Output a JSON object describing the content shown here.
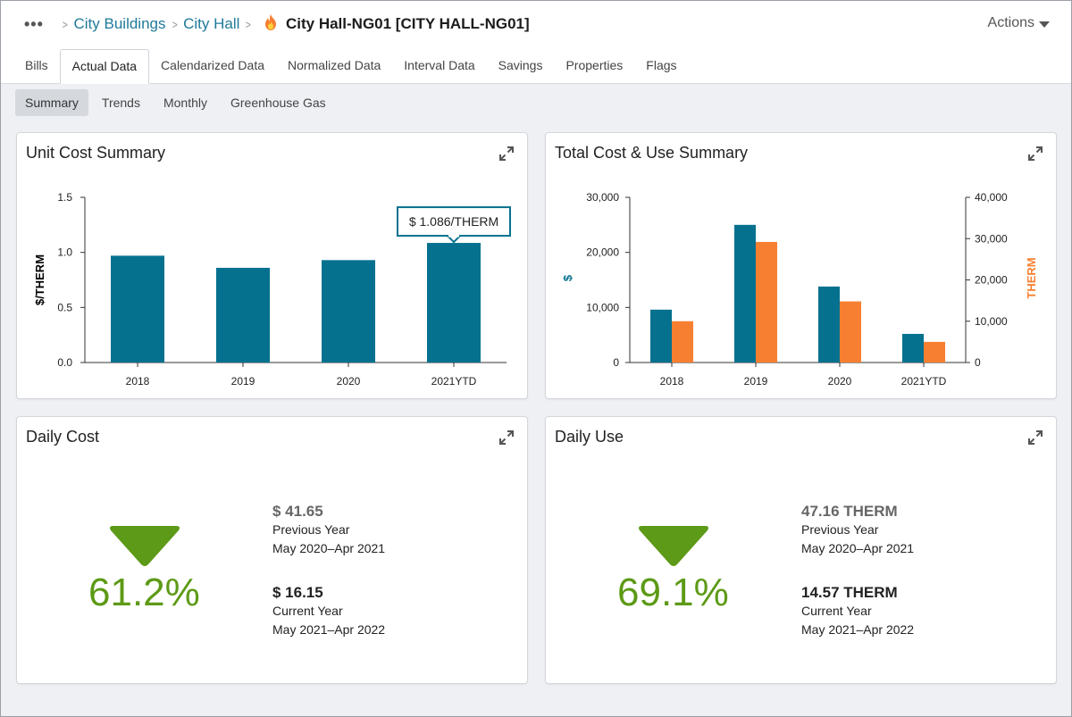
{
  "header": {
    "breadcrumbs": [
      "City Buildings",
      "City Hall"
    ],
    "current": "City Hall-NG01 [CITY HALL-NG01]",
    "actions_label": "Actions"
  },
  "tabs": [
    "Bills",
    "Actual Data",
    "Calendarized Data",
    "Normalized Data",
    "Interval Data",
    "Savings",
    "Properties",
    "Flags"
  ],
  "active_tab": "Actual Data",
  "subtabs": [
    "Summary",
    "Trends",
    "Monthly",
    "Greenhouse Gas"
  ],
  "active_subtab": "Summary",
  "colors": {
    "teal": "#06718f",
    "orange": "#f77f31",
    "green": "#5d9a17",
    "link": "#1f7a99"
  },
  "cards": {
    "unit_cost": {
      "title": "Unit Cost Summary"
    },
    "total_cost": {
      "title": "Total Cost & Use Summary"
    },
    "daily_cost": {
      "title": "Daily Cost",
      "percent": "61.2%",
      "direction": "down",
      "previous_value": "$ 41.65",
      "previous_label": "Previous Year",
      "previous_period": "May 2020–Apr 2021",
      "current_value": "$ 16.15",
      "current_label": "Current Year",
      "current_period": "May 2021–Apr 2022"
    },
    "daily_use": {
      "title": "Daily Use",
      "percent": "69.1%",
      "direction": "down",
      "previous_value": "47.16 THERM",
      "previous_label": "Previous Year",
      "previous_period": "May 2020–Apr 2021",
      "current_value": "14.57 THERM",
      "current_label": "Current Year",
      "current_period": "May 2021–Apr 2022"
    }
  },
  "chart_data": [
    {
      "type": "bar",
      "title": "Unit Cost Summary",
      "categories": [
        "2018",
        "2019",
        "2020",
        "2021YTD"
      ],
      "values": [
        0.97,
        0.86,
        0.93,
        1.086
      ],
      "ylabel": "$/THERM",
      "ylim": [
        0,
        1.5
      ],
      "yticks": [
        "0.0",
        "0.5",
        "1.0",
        "1.5"
      ],
      "tooltip": {
        "category": "2021YTD",
        "text": "$ 1.086/THERM"
      },
      "color": "#06718f"
    },
    {
      "type": "bar",
      "title": "Total Cost & Use Summary",
      "categories": [
        "2018",
        "2019",
        "2020",
        "2021YTD"
      ],
      "series": [
        {
          "name": "$",
          "axis": "left",
          "color": "#06718f",
          "values": [
            9600,
            25000,
            13800,
            5200
          ]
        },
        {
          "name": "THERM",
          "axis": "right",
          "color": "#f77f31",
          "values": [
            10000,
            29200,
            14800,
            5000
          ]
        }
      ],
      "ylabel_left": "$",
      "ylabel_right": "THERM",
      "ylim_left": [
        0,
        30000
      ],
      "ylim_right": [
        0,
        40000
      ],
      "yticks_left": [
        "0",
        "10,000",
        "20,000",
        "30,000"
      ],
      "yticks_right": [
        "0",
        "10,000",
        "20,000",
        "30,000",
        "40,000"
      ]
    }
  ]
}
